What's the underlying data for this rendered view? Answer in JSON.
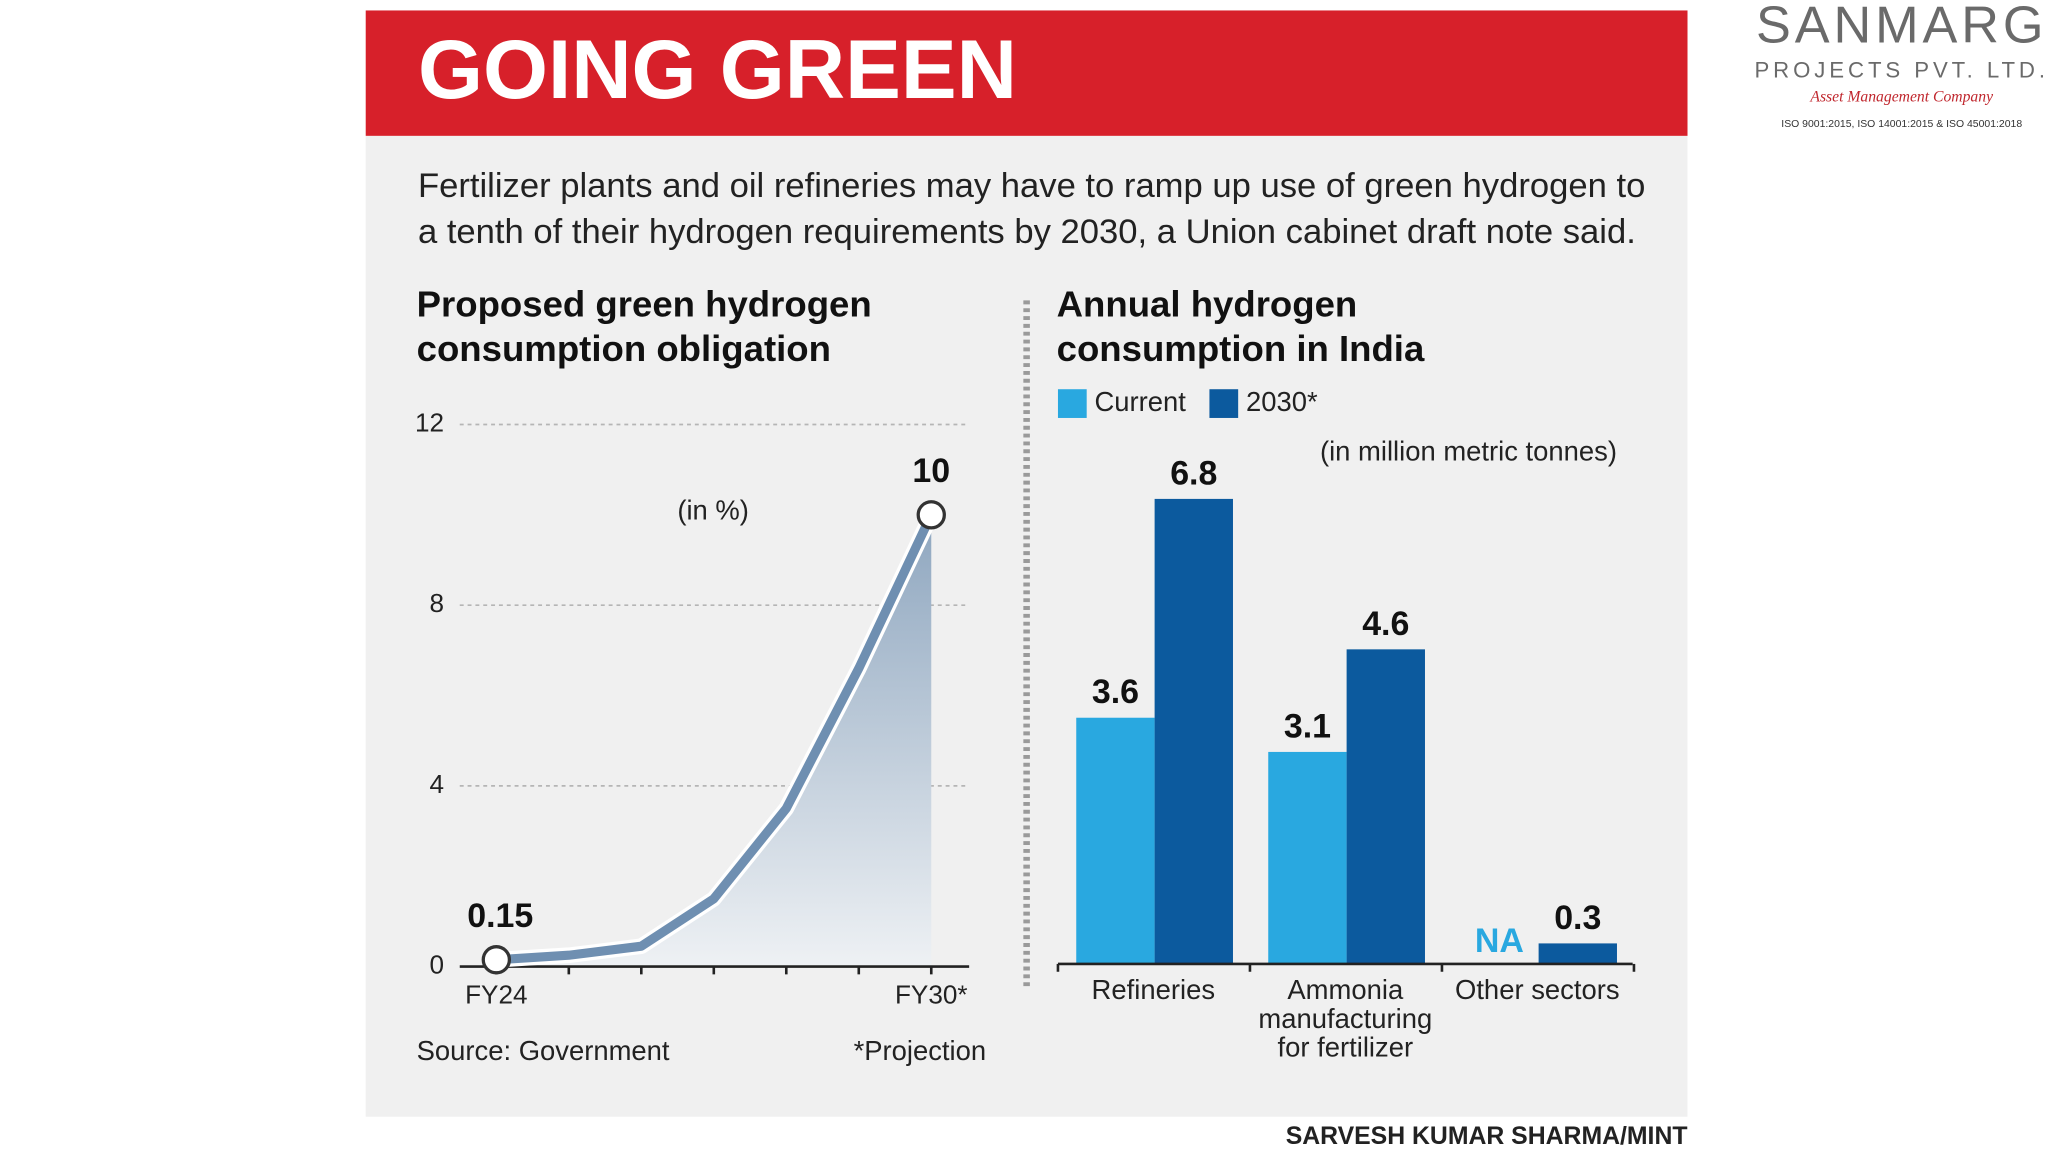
{
  "header": {
    "title": "GOING GREEN"
  },
  "description": [
    "Fertilizer plants and oil refineries may have to ramp up use of green hydrogen to",
    "a tenth of their hydrogen requirements by 2030, a Union cabinet draft note said."
  ],
  "logo": {
    "name": "SANMARG",
    "subtitle": "PROJECTS PVT. LTD.",
    "tagline": "Asset Management Company",
    "certification": "ISO 9001:2015, ISO 14001:2015 & ISO 45001:2018"
  },
  "credit": "SARVESH KUMAR SHARMA/MINT",
  "chart_data": [
    {
      "type": "line",
      "title": [
        "Proposed green hydrogen",
        "consumption obligation"
      ],
      "annotation": "(in %)",
      "categories": [
        "FY24",
        null,
        null,
        null,
        null,
        null,
        "FY30*"
      ],
      "values": [
        0.15,
        0.25,
        0.45,
        1.5,
        3.5,
        6.6,
        10
      ],
      "value_labels": [
        "0.15",
        null,
        null,
        null,
        null,
        null,
        "10"
      ],
      "color": "#6f8fb1",
      "ylim": [
        0,
        12
      ],
      "yticks": [
        0,
        4,
        8,
        12
      ],
      "grid": true,
      "source": "Source: Government",
      "note": "*Projection"
    },
    {
      "type": "bar",
      "title": [
        "Annual hydrogen",
        "consumption in India"
      ],
      "unit": "(in million metric tonnes)",
      "categories": [
        "Refineries",
        "Ammonia manufacturing for fertilizer",
        "Other sectors"
      ],
      "series": [
        {
          "name": "Current",
          "color": "#29a8e0",
          "values": [
            3.6,
            3.1,
            null
          ],
          "value_labels": [
            "3.6",
            "3.1",
            "NA"
          ]
        },
        {
          "name": "2030*",
          "color": "#0c5a9e",
          "values": [
            6.8,
            4.6,
            0.3
          ]
        }
      ],
      "ylim": [
        0,
        7
      ],
      "legend": "top-left"
    }
  ]
}
